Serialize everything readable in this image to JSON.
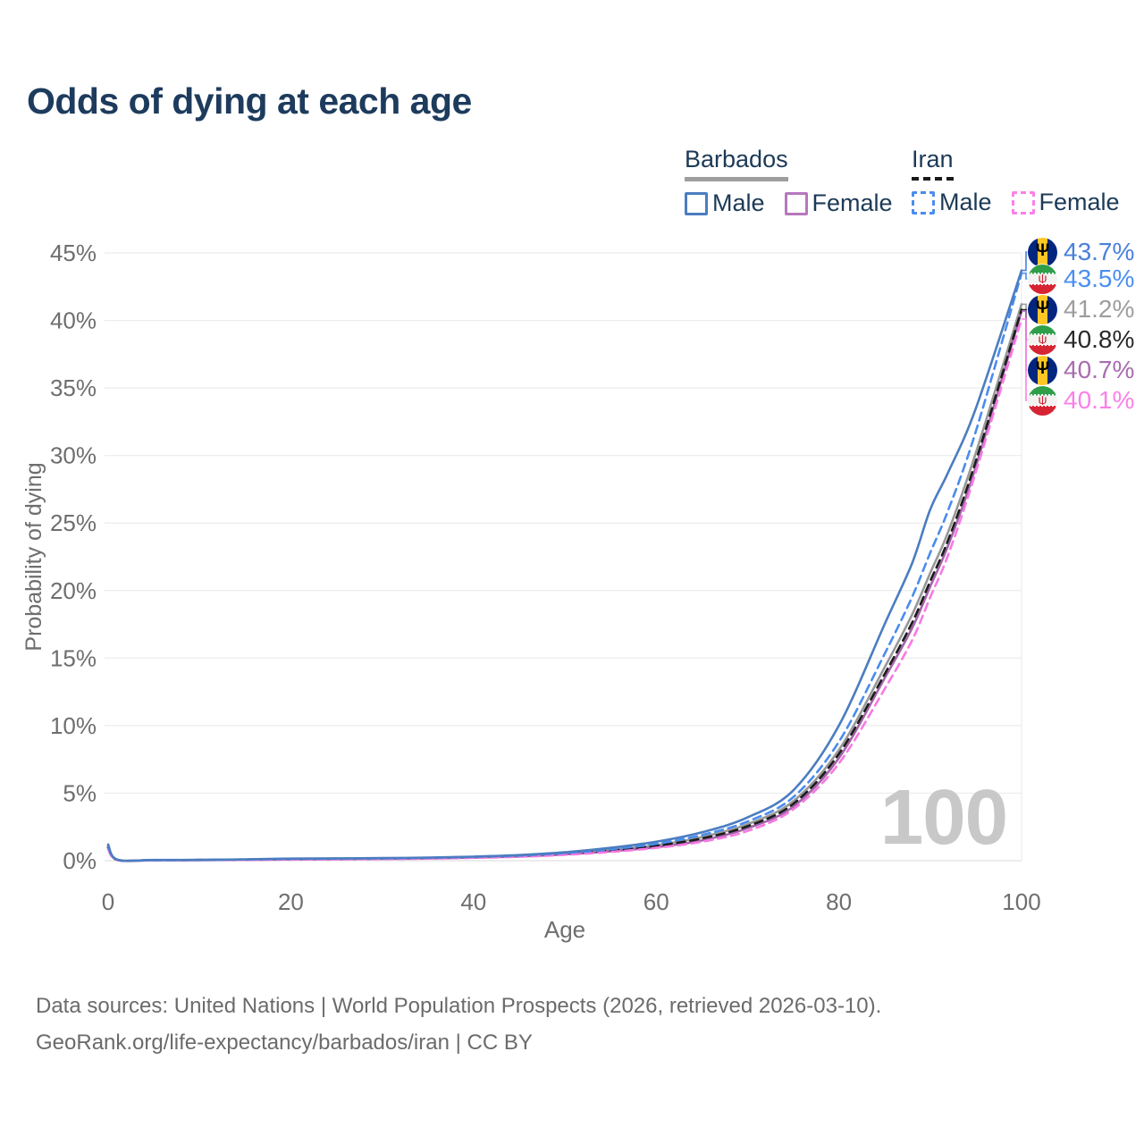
{
  "title": "Odds of dying at each age",
  "legend": {
    "groups": [
      {
        "name": "Barbados",
        "line_style": "solid",
        "underline_color": "#9e9e9e",
        "items": [
          {
            "label": "Male",
            "color": "#4b7dc0"
          },
          {
            "label": "Female",
            "color": "#b678bd"
          }
        ]
      },
      {
        "name": "Iran",
        "line_style": "dashed",
        "underline_color": "#1a1a1a",
        "items": [
          {
            "label": "Male",
            "color": "#4a8cee"
          },
          {
            "label": "Female",
            "color": "#fb80e8"
          }
        ]
      }
    ]
  },
  "icons": {
    "barbados_trident": "Ψ",
    "iran_emblem": "ψ"
  },
  "watermark": "100",
  "end_labels": [
    {
      "flag": "barbados",
      "value": "43.7%",
      "end_value_pct": 43.7,
      "color": "#4a80d9"
    },
    {
      "flag": "iran",
      "value": "43.5%",
      "end_value_pct": 43.5,
      "color": "#4a8ff2"
    },
    {
      "flag": "barbados",
      "value": "41.2%",
      "end_value_pct": 41.2,
      "color": "#9d9d9d"
    },
    {
      "flag": "iran",
      "value": "40.8%",
      "end_value_pct": 40.8,
      "color": "#2a2a2a"
    },
    {
      "flag": "barbados",
      "value": "40.7%",
      "end_value_pct": 40.7,
      "color": "#a96cb0"
    },
    {
      "flag": "iran",
      "value": "40.1%",
      "end_value_pct": 40.1,
      "color": "#fa80e8"
    }
  ],
  "footer": {
    "line1": "Data sources: United Nations | World Population Prospects (2026, retrieved 2026-03-10).",
    "line2": "GeoRank.org/life-expectancy/barbados/iran | CC BY"
  },
  "chart_data": {
    "type": "line",
    "title": "Odds of dying at each age",
    "xlabel": "Age",
    "ylabel": "Probability of dying",
    "xlim": [
      0,
      100
    ],
    "ylim": [
      0,
      45
    ],
    "grid": "horizontal",
    "legend_position": "top-right",
    "x_ticks": [
      {
        "value": 0,
        "label": "0"
      },
      {
        "value": 20,
        "label": "20"
      },
      {
        "value": 40,
        "label": "40"
      },
      {
        "value": 60,
        "label": "60"
      },
      {
        "value": 80,
        "label": "80"
      },
      {
        "value": 100,
        "label": "100"
      }
    ],
    "y_ticks": [
      {
        "value": 0,
        "label": "0%"
      },
      {
        "value": 5,
        "label": "5%"
      },
      {
        "value": 10,
        "label": "10%"
      },
      {
        "value": 15,
        "label": "15%"
      },
      {
        "value": 20,
        "label": "20%"
      },
      {
        "value": 25,
        "label": "25%"
      },
      {
        "value": 30,
        "label": "30%"
      },
      {
        "value": 35,
        "label": "35%"
      },
      {
        "value": 40,
        "label": "40%"
      },
      {
        "value": 45,
        "label": "45%"
      }
    ],
    "x": [
      0,
      1,
      5,
      10,
      15,
      20,
      25,
      30,
      35,
      40,
      45,
      50,
      55,
      60,
      65,
      70,
      75,
      80,
      85,
      88,
      90,
      92,
      95,
      100
    ],
    "series": [
      {
        "key": "barbados-all",
        "name": "Barbados (all)",
        "line_style": "solid",
        "color": "#979797",
        "values": [
          1.1,
          0.07,
          0.04,
          0.05,
          0.08,
          0.12,
          0.14,
          0.16,
          0.2,
          0.26,
          0.36,
          0.53,
          0.8,
          1.15,
          1.75,
          2.7,
          4.4,
          8.2,
          14.3,
          18.2,
          21.3,
          24.4,
          30.2,
          41.2
        ]
      },
      {
        "key": "barbados-female",
        "name": "Barbados Female",
        "line_style": "solid",
        "color": "#a263a8",
        "values": [
          1.0,
          0.06,
          0.03,
          0.04,
          0.06,
          0.09,
          0.11,
          0.13,
          0.17,
          0.23,
          0.32,
          0.47,
          0.7,
          1.0,
          1.5,
          2.4,
          4.0,
          7.6,
          13.5,
          17.2,
          20.3,
          23.4,
          29.2,
          40.7
        ]
      },
      {
        "key": "iran-all",
        "name": "Iran (all)",
        "line_style": "dashed",
        "color": "#1c1c1c",
        "values": [
          0.95,
          0.06,
          0.04,
          0.05,
          0.08,
          0.11,
          0.13,
          0.15,
          0.19,
          0.25,
          0.34,
          0.5,
          0.76,
          1.1,
          1.65,
          2.55,
          4.2,
          7.9,
          13.8,
          17.6,
          20.7,
          23.8,
          29.6,
          40.8
        ]
      },
      {
        "key": "iran-female",
        "name": "Iran Female",
        "line_style": "dashed",
        "color": "#f779e3",
        "values": [
          0.85,
          0.05,
          0.03,
          0.04,
          0.05,
          0.08,
          0.1,
          0.12,
          0.15,
          0.21,
          0.29,
          0.43,
          0.65,
          0.95,
          1.4,
          2.2,
          3.8,
          7.2,
          12.7,
          16.3,
          19.5,
          22.7,
          28.8,
          40.1
        ]
      },
      {
        "key": "iran-male",
        "name": "Iran Male",
        "line_style": "dashed",
        "color": "#4a8cee",
        "values": [
          1.05,
          0.07,
          0.04,
          0.05,
          0.09,
          0.13,
          0.15,
          0.17,
          0.21,
          0.28,
          0.38,
          0.56,
          0.85,
          1.25,
          1.9,
          2.9,
          4.7,
          8.8,
          15.3,
          19.5,
          22.8,
          26.0,
          31.8,
          43.5
        ]
      },
      {
        "key": "barbados-male",
        "name": "Barbados Male",
        "line_style": "solid",
        "color": "#4b7dc0",
        "values": [
          1.2,
          0.08,
          0.05,
          0.06,
          0.1,
          0.15,
          0.17,
          0.19,
          0.23,
          0.3,
          0.42,
          0.62,
          0.95,
          1.4,
          2.1,
          3.2,
          5.2,
          10.0,
          17.5,
          22.0,
          26.0,
          28.8,
          33.5,
          43.7
        ]
      }
    ]
  }
}
